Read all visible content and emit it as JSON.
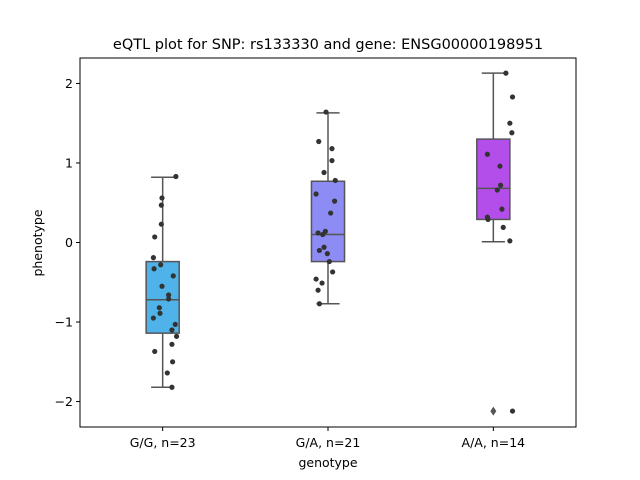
{
  "chart_data": {
    "type": "box",
    "title": "eQTL plot for SNP: rs133330 and gene: ENSG00000198951",
    "xlabel": "genotype",
    "ylabel": "phenotype",
    "ylim": [
      -2.32,
      2.32
    ],
    "yticks": [
      -2,
      -1,
      0,
      1,
      2
    ],
    "yticklabels": [
      "−2",
      "−1",
      "0",
      "1",
      "2"
    ],
    "grid": false,
    "legend": "none",
    "categories": [
      "G/G, n=23",
      "G/A, n=21",
      "A/A, n=14"
    ],
    "colors": [
      "#4fb3ea",
      "#8c8cf4",
      "#b44eea"
    ],
    "boxes": [
      {
        "q1": -1.14,
        "median": -0.72,
        "q3": -0.24,
        "whisker_low": -1.82,
        "whisker_high": 0.82,
        "outliers": []
      },
      {
        "q1": -0.24,
        "median": 0.1,
        "q3": 0.77,
        "whisker_low": -0.77,
        "whisker_high": 1.63,
        "outliers": []
      },
      {
        "q1": 0.29,
        "median": 0.68,
        "q3": 1.3,
        "whisker_low": 0.01,
        "whisker_high": 2.13,
        "outliers": [
          -2.12
        ]
      }
    ],
    "points": [
      [
        {
          "x": 0.2,
          "y": 0.83
        },
        {
          "x": -0.01,
          "y": 0.56
        },
        {
          "x": -0.02,
          "y": 0.47
        },
        {
          "x": -0.02,
          "y": 0.23
        },
        {
          "x": -0.12,
          "y": 0.07
        },
        {
          "x": -0.14,
          "y": -0.19
        },
        {
          "x": -0.03,
          "y": -0.28
        },
        {
          "x": -0.13,
          "y": -0.33
        },
        {
          "x": 0.16,
          "y": -0.42
        },
        {
          "x": -0.01,
          "y": -0.55
        },
        {
          "x": 0.09,
          "y": -0.66
        },
        {
          "x": 0.09,
          "y": -0.71
        },
        {
          "x": -0.05,
          "y": -0.82
        },
        {
          "x": -0.04,
          "y": -0.89
        },
        {
          "x": -0.14,
          "y": -0.95
        },
        {
          "x": 0.19,
          "y": -1.03
        },
        {
          "x": 0.14,
          "y": -1.1
        },
        {
          "x": 0.21,
          "y": -1.18
        },
        {
          "x": 0.14,
          "y": -1.28
        },
        {
          "x": -0.12,
          "y": -1.37
        },
        {
          "x": 0.15,
          "y": -1.5
        },
        {
          "x": 0.07,
          "y": -1.64
        },
        {
          "x": 0.14,
          "y": -1.82
        }
      ],
      [
        {
          "x": -0.03,
          "y": 1.64
        },
        {
          "x": -0.14,
          "y": 1.27
        },
        {
          "x": 0.06,
          "y": 1.18
        },
        {
          "x": 0.06,
          "y": 1.03
        },
        {
          "x": -0.06,
          "y": 0.88
        },
        {
          "x": 0.11,
          "y": 0.78
        },
        {
          "x": -0.18,
          "y": 0.61
        },
        {
          "x": 0.1,
          "y": 0.52
        },
        {
          "x": 0.04,
          "y": 0.37
        },
        {
          "x": -0.04,
          "y": 0.14
        },
        {
          "x": -0.15,
          "y": 0.12
        },
        {
          "x": -0.13,
          "y": -0.1
        },
        {
          "x": -0.06,
          "y": -0.06
        },
        {
          "x": -0.01,
          "y": -0.14
        },
        {
          "x": 0.02,
          "y": -0.24
        },
        {
          "x": 0.07,
          "y": -0.37
        },
        {
          "x": -0.18,
          "y": -0.46
        },
        {
          "x": -0.09,
          "y": -0.51
        },
        {
          "x": -0.15,
          "y": -0.6
        },
        {
          "x": -0.13,
          "y": -0.77
        },
        {
          "x": -0.08,
          "y": 0.1
        }
      ],
      [
        {
          "x": 0.19,
          "y": 2.13
        },
        {
          "x": 0.29,
          "y": 1.83
        },
        {
          "x": 0.25,
          "y": 1.5
        },
        {
          "x": 0.28,
          "y": 1.38
        },
        {
          "x": -0.09,
          "y": 1.11
        },
        {
          "x": 0.1,
          "y": 0.96
        },
        {
          "x": 0.11,
          "y": 0.72
        },
        {
          "x": 0.06,
          "y": 0.66
        },
        {
          "x": 0.13,
          "y": 0.42
        },
        {
          "x": -0.09,
          "y": 0.32
        },
        {
          "x": -0.08,
          "y": 0.29
        },
        {
          "x": 0.15,
          "y": 0.19
        },
        {
          "x": 0.25,
          "y": 0.02
        },
        {
          "x": 0.29,
          "y": -2.12
        }
      ]
    ]
  }
}
